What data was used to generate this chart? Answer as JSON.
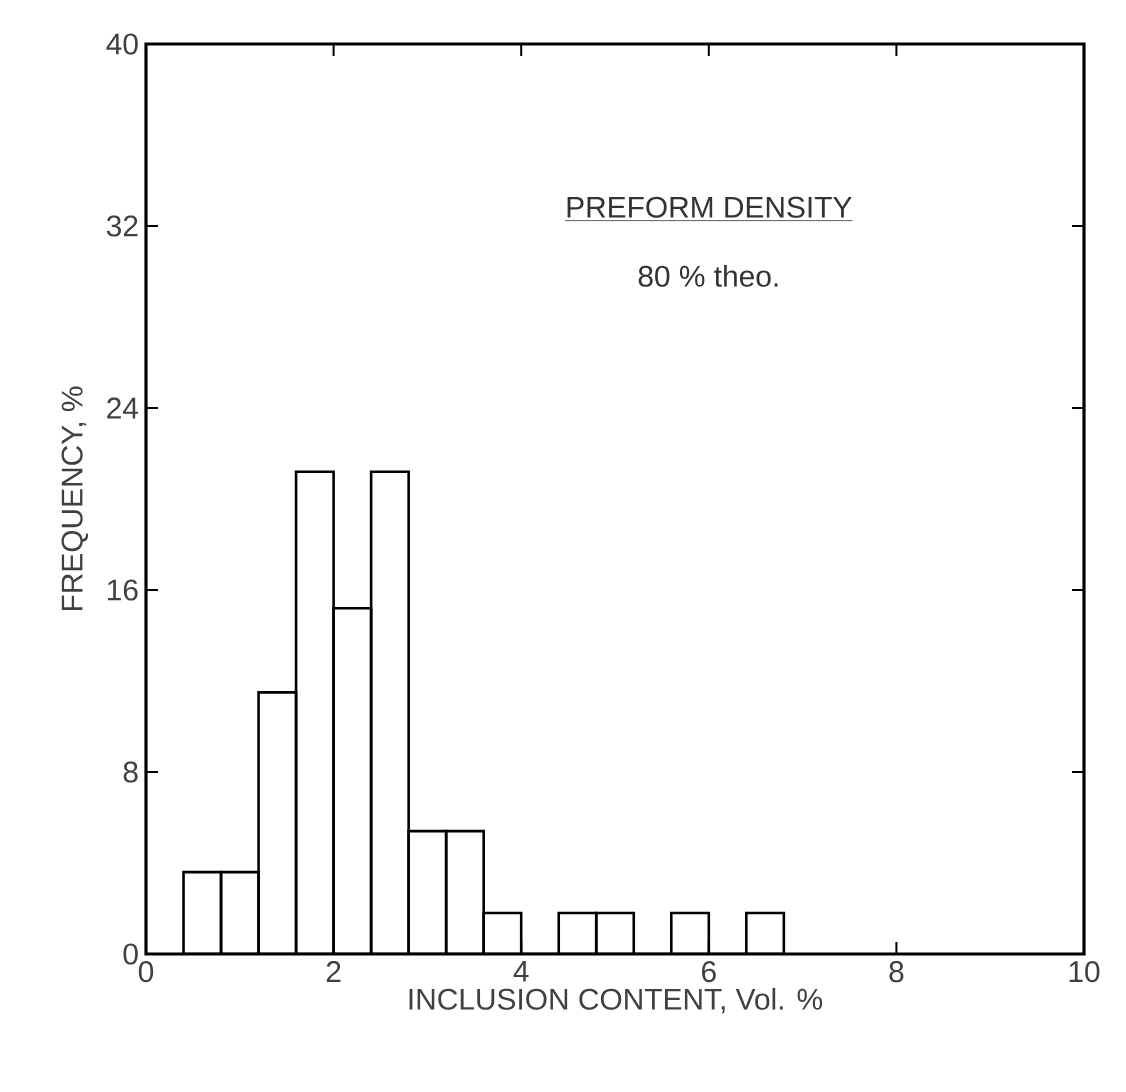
{
  "chart_data": {
    "type": "histogram",
    "xlabel": "INCLUSION CONTENT, Vol. %",
    "ylabel": "FREQUENCY, %",
    "annotations": [
      "PREFORM DENSITY",
      "80 % theo."
    ],
    "bins": [
      0.4,
      0.8,
      1.2,
      1.6,
      2.0,
      2.4,
      2.8,
      3.2,
      3.6,
      4.0,
      4.4,
      4.8,
      5.2,
      5.6,
      6.0,
      6.4,
      6.8
    ],
    "values": [
      3.6,
      3.6,
      11.5,
      21.2,
      15.2,
      21.2,
      5.4,
      5.4,
      1.8,
      0,
      1.8,
      1.8,
      0,
      1.8,
      0,
      1.8
    ],
    "color": "#000000",
    "xlim": [
      0,
      10
    ],
    "ylim": [
      0,
      40
    ],
    "xticks": [
      0,
      2,
      4,
      6,
      8,
      10
    ],
    "yticks": [
      0,
      8,
      16,
      24,
      32,
      40
    ],
    "grid": false
  }
}
